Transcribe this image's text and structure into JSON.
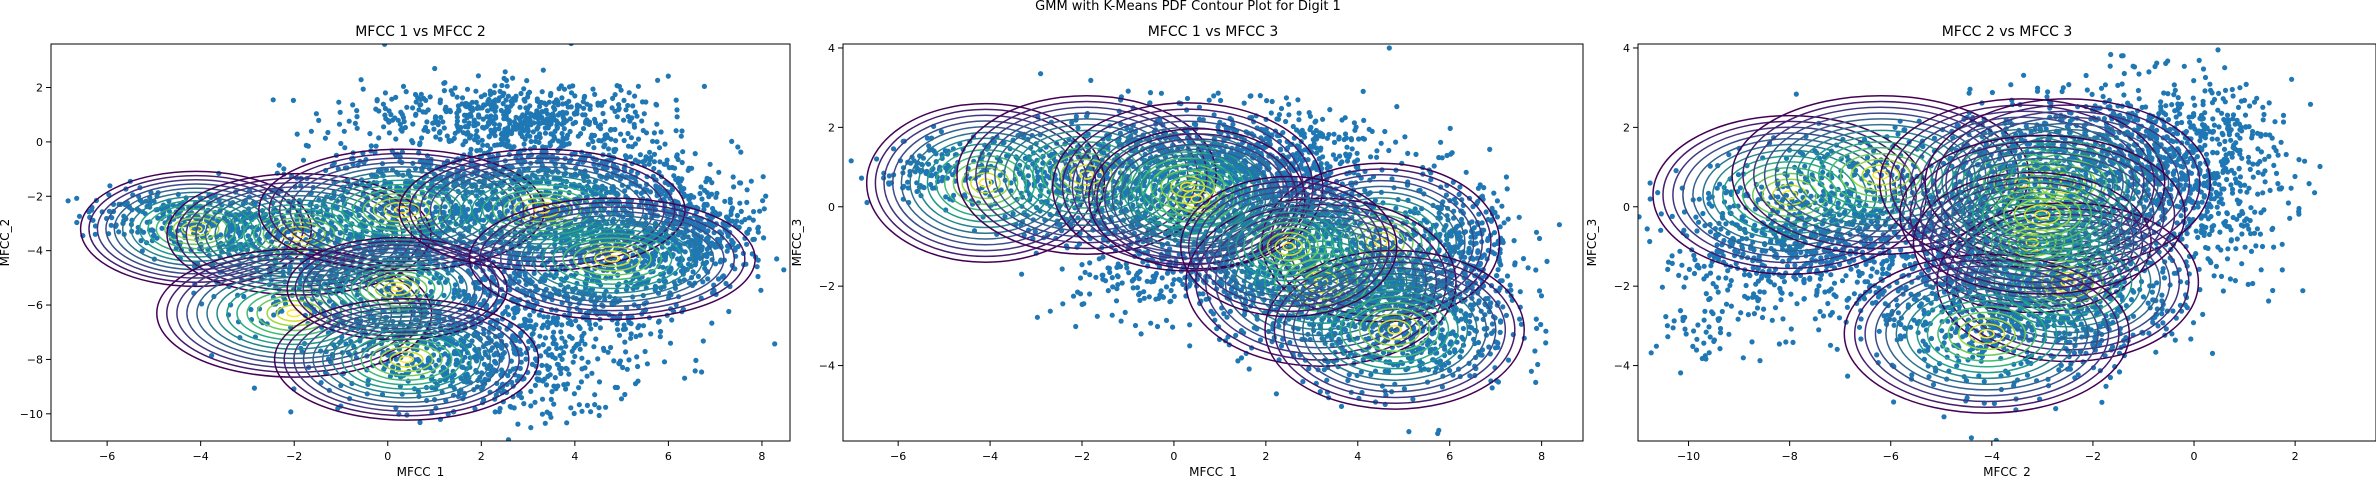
{
  "figure_title": "GMM with K-Means PDF Contour Plot for Digit 1",
  "colors": {
    "points": "#1f77b4",
    "contour_low": "#440154",
    "contour_high": "#fde725"
  },
  "chart_data": [
    {
      "type": "scatter",
      "title": "MFCC 1 vs MFCC 2",
      "xlabel": "MFCC_1",
      "ylabel": "MFCC_2",
      "xlim": [
        -7.2,
        8.6
      ],
      "ylim": [
        -11,
        3.6
      ],
      "xticks": [
        -6,
        -4,
        -2,
        0,
        2,
        4,
        6,
        8
      ],
      "yticks": [
        -10,
        -8,
        -6,
        -4,
        -2,
        0,
        2
      ],
      "grid": false,
      "overlay": "gmm_pdf_contours",
      "gmm_components": [
        {
          "mean": [
            -4.1,
            -3.2
          ],
          "sd": [
            1.05,
            0.9
          ]
        },
        {
          "mean": [
            -1.9,
            -3.4
          ],
          "sd": [
            1.2,
            0.95
          ]
        },
        {
          "mean": [
            -2.0,
            -6.3
          ],
          "sd": [
            1.25,
            1.0
          ]
        },
        {
          "mean": [
            0.3,
            -2.5
          ],
          "sd": [
            1.3,
            0.95
          ]
        },
        {
          "mean": [
            0.2,
            -5.4
          ],
          "sd": [
            1.0,
            0.8
          ]
        },
        {
          "mean": [
            0.4,
            -8.0
          ],
          "sd": [
            1.2,
            0.95
          ]
        },
        {
          "mean": [
            3.3,
            -2.5
          ],
          "sd": [
            1.3,
            0.95
          ]
        },
        {
          "mean": [
            4.8,
            -4.3
          ],
          "sd": [
            1.3,
            0.95
          ]
        }
      ],
      "point_cloud": [
        {
          "center": [
            -5.0,
            -2.7
          ],
          "spread": [
            0.8,
            0.5
          ],
          "n": 140
        },
        {
          "center": [
            -3.2,
            -3.2
          ],
          "spread": [
            0.9,
            0.6
          ],
          "n": 220
        },
        {
          "center": [
            -1.5,
            -4.3
          ],
          "spread": [
            1.0,
            1.4
          ],
          "n": 360
        },
        {
          "center": [
            0.6,
            -3.2
          ],
          "spread": [
            1.4,
            1.6
          ],
          "n": 700
        },
        {
          "center": [
            0.8,
            -7.4
          ],
          "spread": [
            1.1,
            1.1
          ],
          "n": 380
        },
        {
          "center": [
            3.3,
            -1.4
          ],
          "spread": [
            1.7,
            1.4
          ],
          "n": 900
        },
        {
          "center": [
            5.2,
            -3.8
          ],
          "spread": [
            1.2,
            1.2
          ],
          "n": 600
        },
        {
          "center": [
            3.6,
            -6.3
          ],
          "spread": [
            1.3,
            1.5
          ],
          "n": 520
        },
        {
          "center": [
            2.4,
            -8.6
          ],
          "spread": [
            0.9,
            0.8
          ],
          "n": 160
        },
        {
          "center": [
            6.6,
            -3.4
          ],
          "spread": [
            0.6,
            0.7
          ],
          "n": 220
        },
        {
          "center": [
            2.8,
            1.0
          ],
          "spread": [
            1.6,
            0.6
          ],
          "n": 420
        }
      ]
    },
    {
      "type": "scatter",
      "title": "MFCC 1 vs MFCC 3",
      "xlabel": "MFCC_1",
      "ylabel": "MFCC_3",
      "xlim": [
        -7.2,
        8.9
      ],
      "ylim": [
        -5.9,
        4.1
      ],
      "xticks": [
        -6,
        -4,
        -2,
        0,
        2,
        4,
        6,
        8
      ],
      "yticks": [
        -4,
        -2,
        0,
        2,
        4
      ],
      "grid": false,
      "overlay": "gmm_pdf_contours",
      "gmm_components": [
        {
          "mean": [
            -4.1,
            0.6
          ],
          "sd": [
            1.1,
            0.85
          ]
        },
        {
          "mean": [
            -1.9,
            0.8
          ],
          "sd": [
            1.2,
            0.85
          ]
        },
        {
          "mean": [
            0.3,
            0.5
          ],
          "sd": [
            1.25,
            0.9
          ]
        },
        {
          "mean": [
            0.5,
            0.2
          ],
          "sd": [
            1.0,
            0.75
          ]
        },
        {
          "mean": [
            4.5,
            -0.9
          ],
          "sd": [
            1.1,
            0.85
          ]
        },
        {
          "mean": [
            3.2,
            -1.9
          ],
          "sd": [
            1.25,
            0.9
          ]
        },
        {
          "mean": [
            4.8,
            -3.1
          ],
          "sd": [
            1.2,
            0.85
          ]
        },
        {
          "mean": [
            2.5,
            -1.0
          ],
          "sd": [
            1.0,
            0.75
          ]
        }
      ],
      "point_cloud": [
        {
          "center": [
            -5.0,
            0.9
          ],
          "spread": [
            0.8,
            0.4
          ],
          "n": 150
        },
        {
          "center": [
            -2.2,
            0.6
          ],
          "spread": [
            1.0,
            0.7
          ],
          "n": 300
        },
        {
          "center": [
            0.4,
            0.8
          ],
          "spread": [
            1.4,
            0.8
          ],
          "n": 700
        },
        {
          "center": [
            2.2,
            1.0
          ],
          "spread": [
            1.3,
            0.7
          ],
          "n": 500
        },
        {
          "center": [
            1.5,
            -1.2
          ],
          "spread": [
            1.3,
            0.9
          ],
          "n": 450
        },
        {
          "center": [
            3.6,
            -1.7
          ],
          "spread": [
            1.3,
            1.0
          ],
          "n": 700
        },
        {
          "center": [
            5.0,
            -2.9
          ],
          "spread": [
            1.2,
            0.9
          ],
          "n": 550
        },
        {
          "center": [
            6.3,
            -1.0
          ],
          "spread": [
            0.7,
            0.9
          ],
          "n": 300
        },
        {
          "center": [
            -0.8,
            -1.6
          ],
          "spread": [
            0.9,
            0.6
          ],
          "n": 120
        }
      ]
    },
    {
      "type": "scatter",
      "title": "MFCC 2 vs MFCC 3",
      "xlabel": "MFCC_2",
      "ylabel": "MFCC_3",
      "xlim": [
        -11.0,
        3.6
      ],
      "ylim": [
        -5.9,
        4.1
      ],
      "xticks": [
        -10,
        -8,
        -6,
        -4,
        -2,
        0,
        2
      ],
      "yticks": [
        -4,
        -2,
        0,
        2,
        4
      ],
      "grid": false,
      "overlay": "gmm_pdf_contours",
      "gmm_components": [
        {
          "mean": [
            -8.0,
            0.3
          ],
          "sd": [
            1.15,
            0.85
          ]
        },
        {
          "mean": [
            -6.2,
            0.8
          ],
          "sd": [
            1.25,
            0.85
          ]
        },
        {
          "mean": [
            -3.4,
            0.6
          ],
          "sd": [
            1.2,
            0.9
          ]
        },
        {
          "mean": [
            -2.5,
            0.6
          ],
          "sd": [
            1.2,
            0.9
          ]
        },
        {
          "mean": [
            -3.2,
            -0.9
          ],
          "sd": [
            1.0,
            0.75
          ]
        },
        {
          "mean": [
            -2.5,
            -1.9
          ],
          "sd": [
            1.1,
            0.85
          ]
        },
        {
          "mean": [
            -4.1,
            -3.2
          ],
          "sd": [
            1.2,
            0.85
          ]
        },
        {
          "mean": [
            -3.0,
            -0.2
          ],
          "sd": [
            1.2,
            0.85
          ]
        }
      ],
      "point_cloud": [
        {
          "center": [
            -8.5,
            -1.0
          ],
          "spread": [
            1.0,
            1.0
          ],
          "n": 420
        },
        {
          "center": [
            -6.5,
            -0.5
          ],
          "spread": [
            1.1,
            1.1
          ],
          "n": 500
        },
        {
          "center": [
            -4.0,
            -2.5
          ],
          "spread": [
            1.2,
            1.0
          ],
          "n": 600
        },
        {
          "center": [
            -3.0,
            0.5
          ],
          "spread": [
            1.3,
            1.0
          ],
          "n": 700
        },
        {
          "center": [
            -1.0,
            1.5
          ],
          "spread": [
            1.0,
            0.9
          ],
          "n": 500
        },
        {
          "center": [
            0.3,
            0.6
          ],
          "spread": [
            0.8,
            1.2
          ],
          "n": 400
        },
        {
          "center": [
            -2.0,
            -2.3
          ],
          "spread": [
            1.0,
            0.8
          ],
          "n": 350
        },
        {
          "center": [
            -9.8,
            -3.2
          ],
          "spread": [
            0.4,
            0.5
          ],
          "n": 40
        }
      ]
    }
  ]
}
